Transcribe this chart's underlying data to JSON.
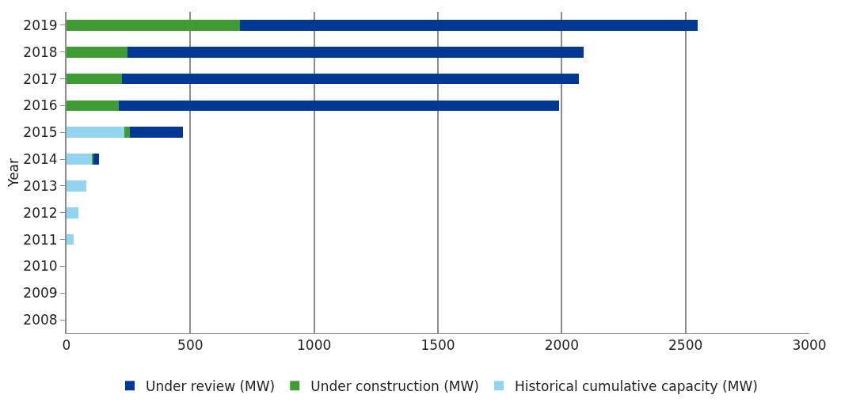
{
  "chart_data": {
    "type": "bar",
    "orientation": "horizontal",
    "stacked": true,
    "ylabel": "Year",
    "categories": [
      "2019",
      "2018",
      "2017",
      "2016",
      "2015",
      "2014",
      "2013",
      "2012",
      "2011",
      "2010",
      "2009",
      "2008"
    ],
    "series": [
      {
        "name": "Historical cumulative capacity (MW)",
        "color": "#93d5f0",
        "values": [
          0,
          0,
          0,
          0,
          235,
          105,
          80,
          47,
          30,
          0,
          0,
          0
        ]
      },
      {
        "name": "Under construction (MW)",
        "color": "#3f9c35",
        "values": [
          700,
          245,
          225,
          210,
          20,
          5,
          0,
          0,
          0,
          0,
          0,
          0
        ]
      },
      {
        "name": "Under review (MW)",
        "color": "#003893",
        "values": [
          1850,
          1845,
          1845,
          1780,
          215,
          20,
          0,
          0,
          0,
          0,
          0,
          0
        ]
      }
    ],
    "xlim": [
      0,
      3000
    ],
    "xticks": [
      0,
      500,
      1000,
      1500,
      2000,
      2500,
      3000
    ],
    "grid": "x",
    "legend": "bottom"
  }
}
